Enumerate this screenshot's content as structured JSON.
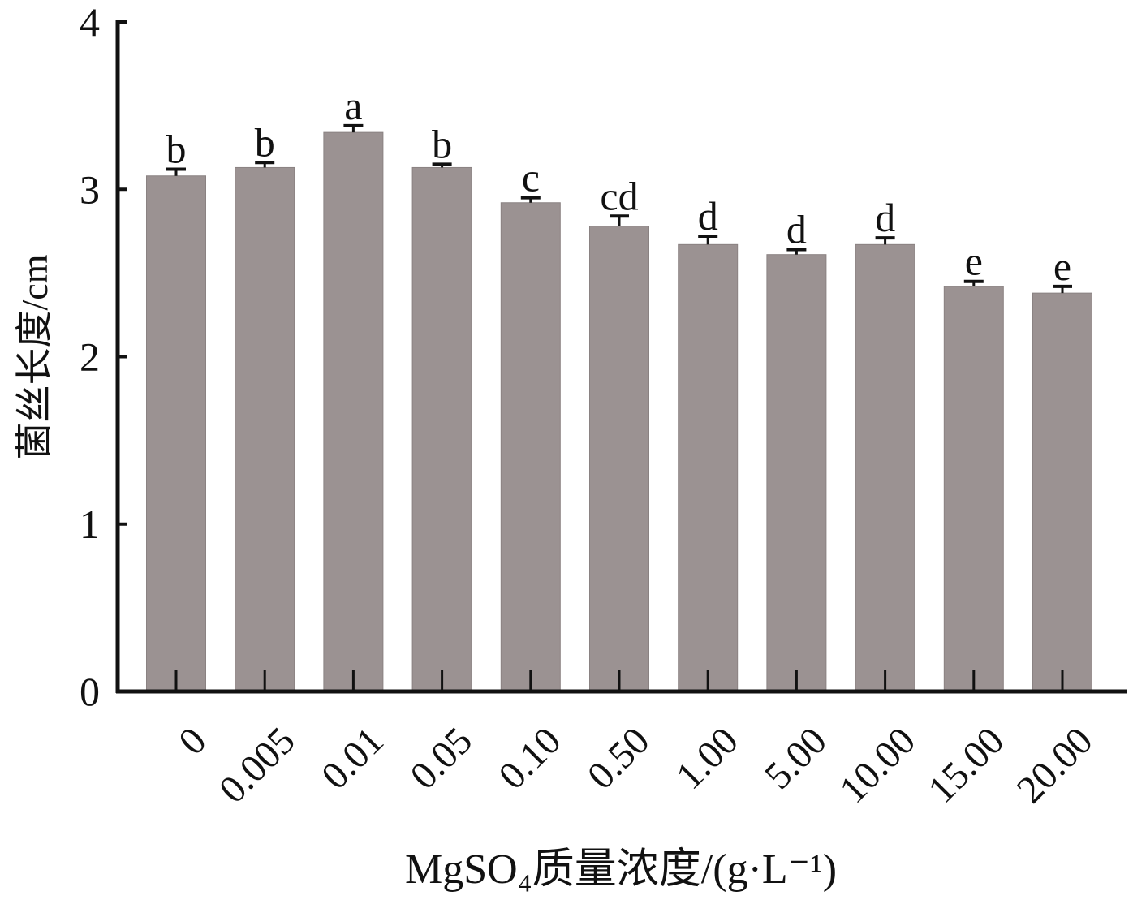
{
  "chart_data": {
    "type": "bar",
    "y_label": "菌丝长度/cm",
    "x_label": "MgSO₄质量浓度/(g·L⁻¹)",
    "categories": [
      "0",
      "0.005",
      "0.01",
      "0.05",
      "0.10",
      "0.50",
      "1.00",
      "5.00",
      "10.00",
      "15.00",
      "20.00"
    ],
    "values": [
      3.08,
      3.13,
      3.34,
      3.13,
      2.92,
      2.78,
      2.67,
      2.61,
      2.67,
      2.42,
      2.38
    ],
    "errors": [
      0.04,
      0.03,
      0.04,
      0.02,
      0.03,
      0.06,
      0.05,
      0.03,
      0.04,
      0.03,
      0.04
    ],
    "significance": [
      "b",
      "b",
      "a",
      "b",
      "c",
      "cd",
      "d",
      "d",
      "d",
      "e",
      "e"
    ],
    "color": "#9b9292",
    "ylim": [
      0,
      4
    ],
    "yticks": [
      0,
      1,
      2,
      3,
      4
    ],
    "grid": false
  }
}
